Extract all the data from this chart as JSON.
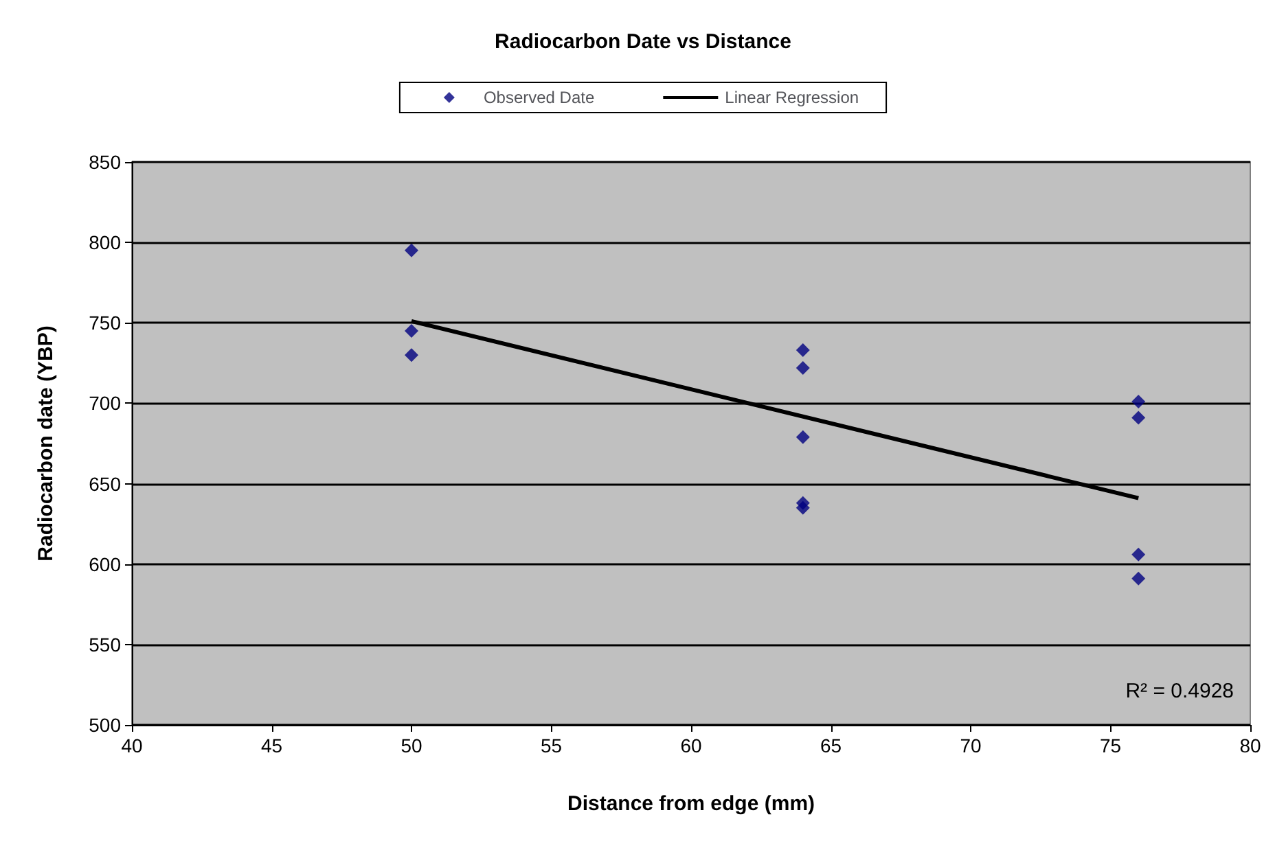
{
  "chart_data": {
    "type": "scatter",
    "title": "Radiocarbon Date vs Distance",
    "xlabel": "Distance from edge (mm)",
    "ylabel": "Radiocarbon date (YBP)",
    "series": [
      {
        "name": "Observed Date",
        "color": "#000080",
        "marker": "diamond",
        "x": [
          50,
          50,
          50,
          64,
          64,
          64,
          64,
          64,
          76,
          76,
          76,
          76
        ],
        "values": [
          795,
          745,
          730,
          733,
          722,
          679,
          638,
          635,
          701,
          691,
          606,
          591
        ]
      },
      {
        "name": "Linear Regression",
        "type": "line",
        "color": "#000000",
        "marker": "none",
        "line_style": "solid",
        "x": [
          50,
          76
        ],
        "values": [
          751,
          641
        ]
      }
    ],
    "xlim": [
      40,
      80
    ],
    "xticks": [
      40,
      45,
      50,
      55,
      60,
      65,
      70,
      75,
      80
    ],
    "ylim": [
      500,
      850
    ],
    "yticks": [
      500,
      550,
      600,
      650,
      700,
      750,
      800,
      850
    ],
    "grid": "y",
    "legend": "top",
    "annotations": [
      "R² = 0.4928"
    ]
  }
}
